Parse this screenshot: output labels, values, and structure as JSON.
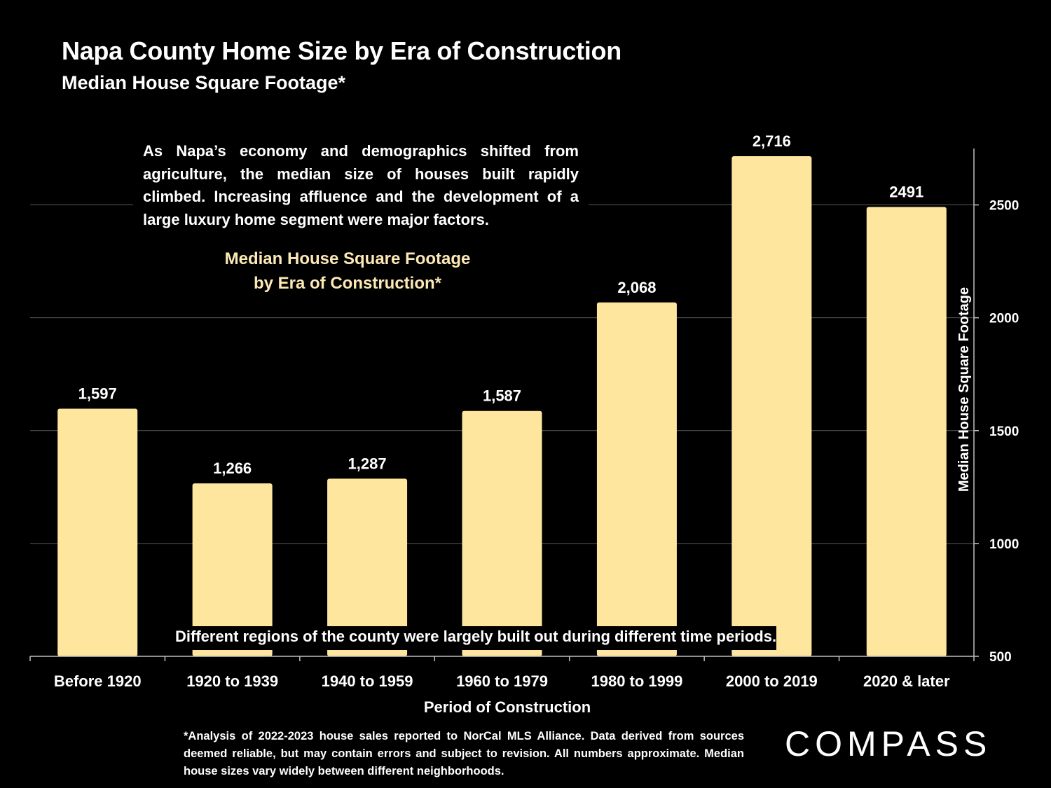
{
  "title": "Napa County Home Size by Era of Construction",
  "subtitle": "Median House Square Footage*",
  "callout": "As Napa’s economy and demographics shifted from agriculture, the median size of houses built rapidly climbed. Increasing affluence and the development of a large luxury home segment were major factors.",
  "chart_heading": {
    "line1": "Median House Square Footage",
    "line2": "by Era of Construction*"
  },
  "regions_note": "Different regions of the county were largely built out during different time periods.",
  "footnote": "*Analysis of 2022-2023 house sales reported to NorCal MLS Alliance.  Data derived from sources deemed reliable, but may contain errors and subject to revision. All numbers approximate. Median house sizes vary widely between different neighborhoods.",
  "brand": "COMPASS",
  "colors": {
    "background": "#000000",
    "bar": "#fee69e",
    "heading": "#fde9b5",
    "gridline": "#5a5a5a",
    "axis": "#bfbfbf",
    "text": "#ffffff"
  },
  "chart_data": {
    "type": "bar",
    "title": "Median House Square Footage by Era of Construction*",
    "xlabel": "Period of Construction",
    "ylabel": "Median House Square Footage",
    "y_axis_side": "right",
    "ylim": [
      500,
      2750
    ],
    "yticks": [
      500,
      1000,
      1500,
      2000,
      2500
    ],
    "grid": true,
    "categories": [
      "Before 1920",
      "1920 to 1939",
      "1940 to 1959",
      "1960 to 1979",
      "1980 to 1999",
      "2000 to 2019",
      "2020 & later"
    ],
    "values": [
      1597,
      1266,
      1287,
      1587,
      2068,
      2716,
      2491
    ],
    "value_labels": [
      "1,597",
      "1,266",
      "1,287",
      "1,587",
      "2,068",
      "2,716",
      "2491"
    ]
  }
}
